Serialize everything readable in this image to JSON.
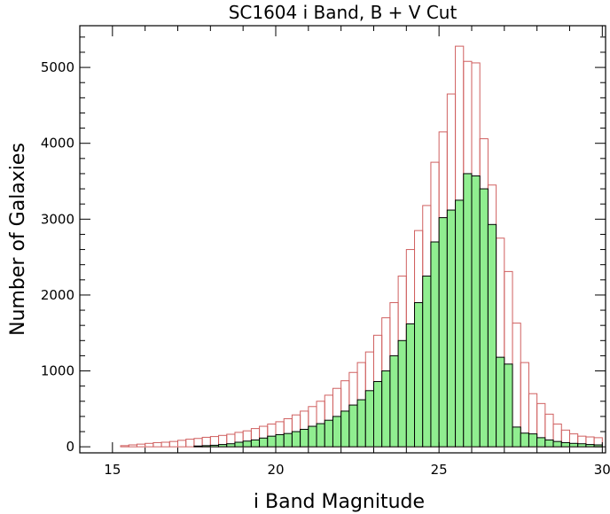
{
  "chart_data": {
    "type": "bar",
    "title": "SC1604 i Band, B + V Cut",
    "xlabel": "i Band Magnitude",
    "ylabel": "Number of Galaxies",
    "xlim": [
      14.0,
      30.1
    ],
    "ylim": [
      -80,
      5550
    ],
    "bin_width": 0.25,
    "x_ticks": [
      15,
      20,
      25,
      30
    ],
    "y_ticks": [
      0,
      1000,
      2000,
      3000,
      4000,
      5000
    ],
    "grid": false,
    "colors": {
      "all_outline": "#d06060",
      "cut_fill": "#90ee90",
      "cut_outline": "#000000"
    },
    "series": [
      {
        "bin_starts": [
          15.25,
          15.5,
          15.75,
          16.0,
          16.25,
          16.5,
          16.75,
          17.0,
          17.25,
          17.5,
          17.75,
          18.0,
          18.25,
          18.5,
          18.75,
          19.0,
          19.25,
          19.5,
          19.75,
          20.0,
          20.25,
          20.5,
          20.75,
          21.0,
          21.25,
          21.5,
          21.75,
          22.0,
          22.25,
          22.5,
          22.75,
          23.0,
          23.25,
          23.5,
          23.75,
          24.0,
          24.25,
          24.5,
          24.75,
          25.0,
          25.25,
          25.5,
          25.75,
          26.0,
          26.25,
          26.5,
          26.75,
          27.0,
          27.25,
          27.5,
          27.75,
          28.0,
          28.25,
          28.5,
          28.75,
          29.0,
          29.25,
          29.5,
          29.75
        ],
        "values": [
          15,
          25,
          35,
          45,
          55,
          60,
          70,
          85,
          100,
          110,
          125,
          135,
          150,
          165,
          190,
          210,
          240,
          270,
          300,
          330,
          370,
          420,
          470,
          530,
          600,
          680,
          770,
          870,
          980,
          1110,
          1250,
          1470,
          1700,
          1900,
          2250,
          2600,
          2850,
          3180,
          3750,
          4150,
          4650,
          5280,
          5080,
          5060,
          4060,
          3450,
          2750,
          2310,
          1630,
          1110,
          700,
          570,
          430,
          300,
          220,
          170,
          140,
          130,
          120
        ]
      },
      {
        "bin_starts": [
          17.5,
          17.75,
          18.0,
          18.25,
          18.5,
          18.75,
          19.0,
          19.25,
          19.5,
          19.75,
          20.0,
          20.25,
          20.5,
          20.75,
          21.0,
          21.25,
          21.5,
          21.75,
          22.0,
          22.25,
          22.5,
          22.75,
          23.0,
          23.25,
          23.5,
          23.75,
          24.0,
          24.25,
          24.5,
          24.75,
          25.0,
          25.25,
          25.5,
          25.75,
          26.0,
          26.25,
          26.5,
          26.75,
          27.0,
          27.25,
          27.5,
          27.75,
          28.0,
          28.25,
          28.5,
          28.75,
          29.0,
          29.25,
          29.5,
          29.75
        ],
        "values": [
          10,
          15,
          20,
          30,
          40,
          60,
          75,
          90,
          115,
          140,
          160,
          175,
          200,
          230,
          270,
          305,
          350,
          400,
          470,
          550,
          620,
          740,
          860,
          1000,
          1200,
          1400,
          1620,
          1900,
          2250,
          2700,
          3020,
          3120,
          3250,
          3600,
          3570,
          3400,
          2930,
          1180,
          1090,
          260,
          180,
          170,
          120,
          90,
          70,
          55,
          45,
          40,
          30,
          25
        ]
      }
    ]
  }
}
